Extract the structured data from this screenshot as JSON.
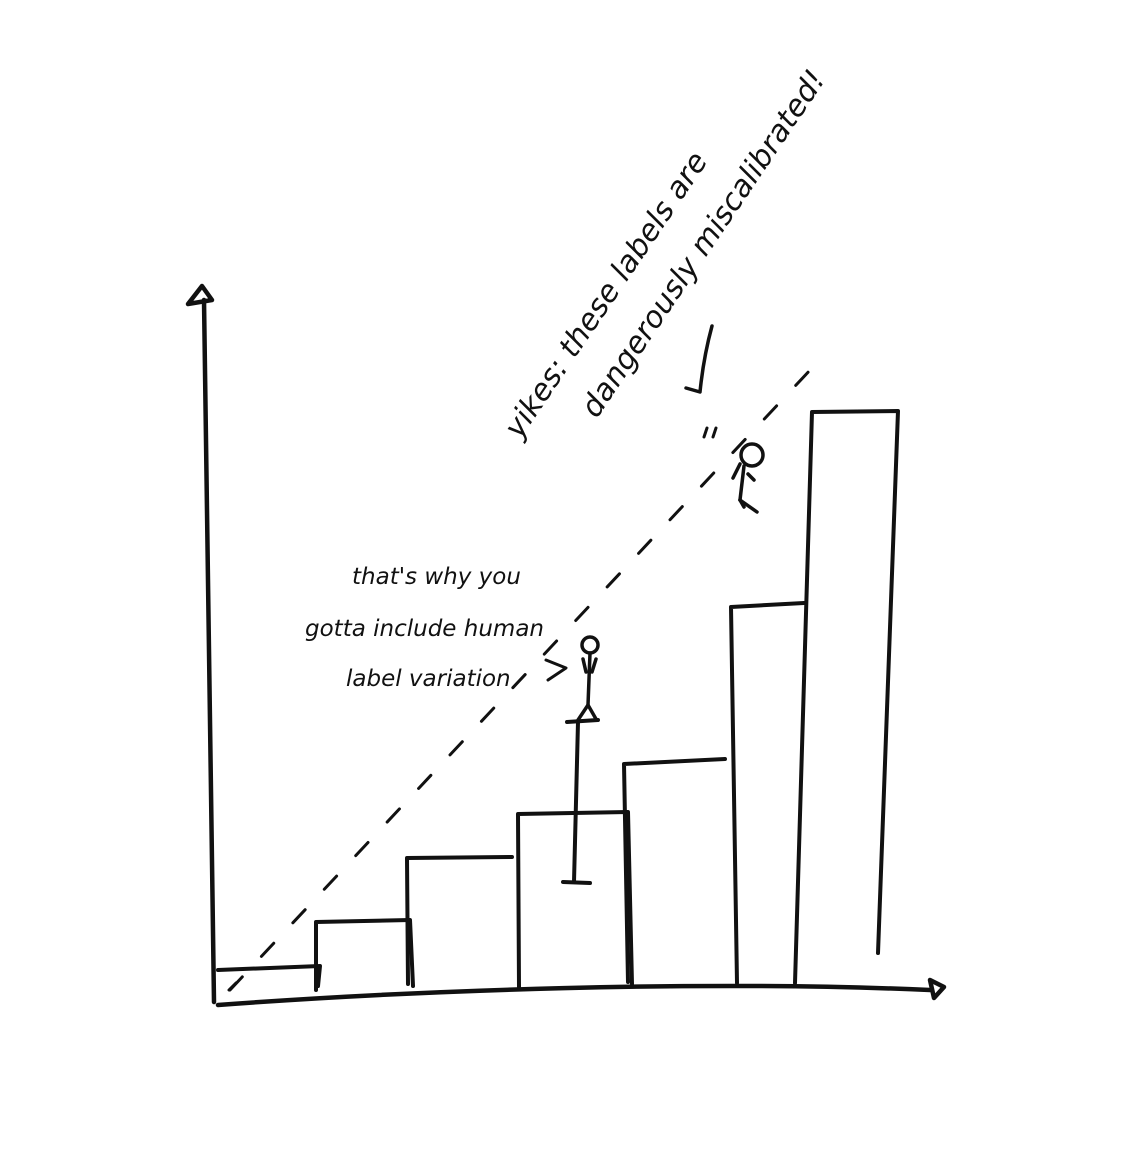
{
  "annotations": {
    "yikes_line1": "yikes: these labels are",
    "yikes_line2": "dangerously miscalibrated!",
    "human_line1": "that's why you",
    "human_line2": "gotta include human",
    "human_line3": "label variation"
  },
  "chart_data": {
    "type": "bar",
    "categories": [
      "",
      "",
      "",
      "",
      "",
      "",
      ""
    ],
    "values": [
      1,
      2.5,
      4,
      5,
      6.2,
      10,
      15
    ],
    "error_bar": {
      "bar_index": 3,
      "low": 2.8,
      "high": 7.8
    },
    "reference_line": "dashed diagonal",
    "title": "",
    "xlabel": "",
    "ylabel": ""
  },
  "colors": {
    "ink": "#111111",
    "background": "#ffffff"
  }
}
